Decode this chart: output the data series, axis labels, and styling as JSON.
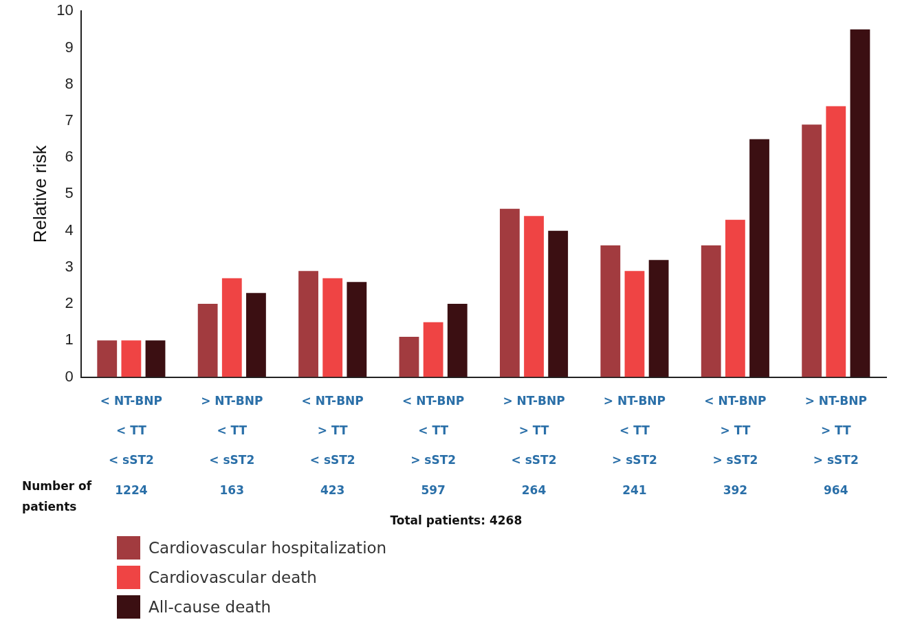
{
  "chart_data": {
    "type": "bar",
    "ylabel": "Relative risk",
    "categories": [
      "< NT-BNP\n< TT\n< sST2\n1224",
      "> NT-BNP\n< TT\n< sST2\n163",
      "< NT-BNP\n> TT\n< sST2\n423",
      "< NT-BNP\n< TT\n> sST2\n597",
      "> NT-BNP\n> TT\n< sST2\n264",
      "> NT-BNP\n< TT\n> sST2\n241",
      "< NT-BNP\n> TT\n> sST2\n392",
      "> NT-BNP\n> TT\n> sST2\n964"
    ],
    "series": [
      {
        "name": "Cardiovascular hospitalization",
        "color": "#a23b3f",
        "values": [
          1,
          2,
          2.9,
          1.1,
          4.6,
          3.6,
          3.6,
          6.9
        ]
      },
      {
        "name": "Cardiovascular death",
        "color": "#ef4444",
        "values": [
          1,
          2.7,
          2.7,
          1.5,
          4.4,
          2.9,
          4.3,
          7.4
        ]
      },
      {
        "name": "All-cause death",
        "color": "#3b0f12",
        "values": [
          1,
          2.3,
          2.6,
          2.0,
          4.0,
          3.2,
          6.5,
          9.5
        ]
      }
    ],
    "ylim": [
      0,
      10
    ],
    "yticks": [
      0,
      1,
      2,
      3,
      4,
      5,
      6,
      7,
      8,
      9,
      10
    ],
    "grid": false,
    "legend": "bottom left",
    "annotations": [
      "Number of patients",
      "Total patients: 4268"
    ]
  }
}
